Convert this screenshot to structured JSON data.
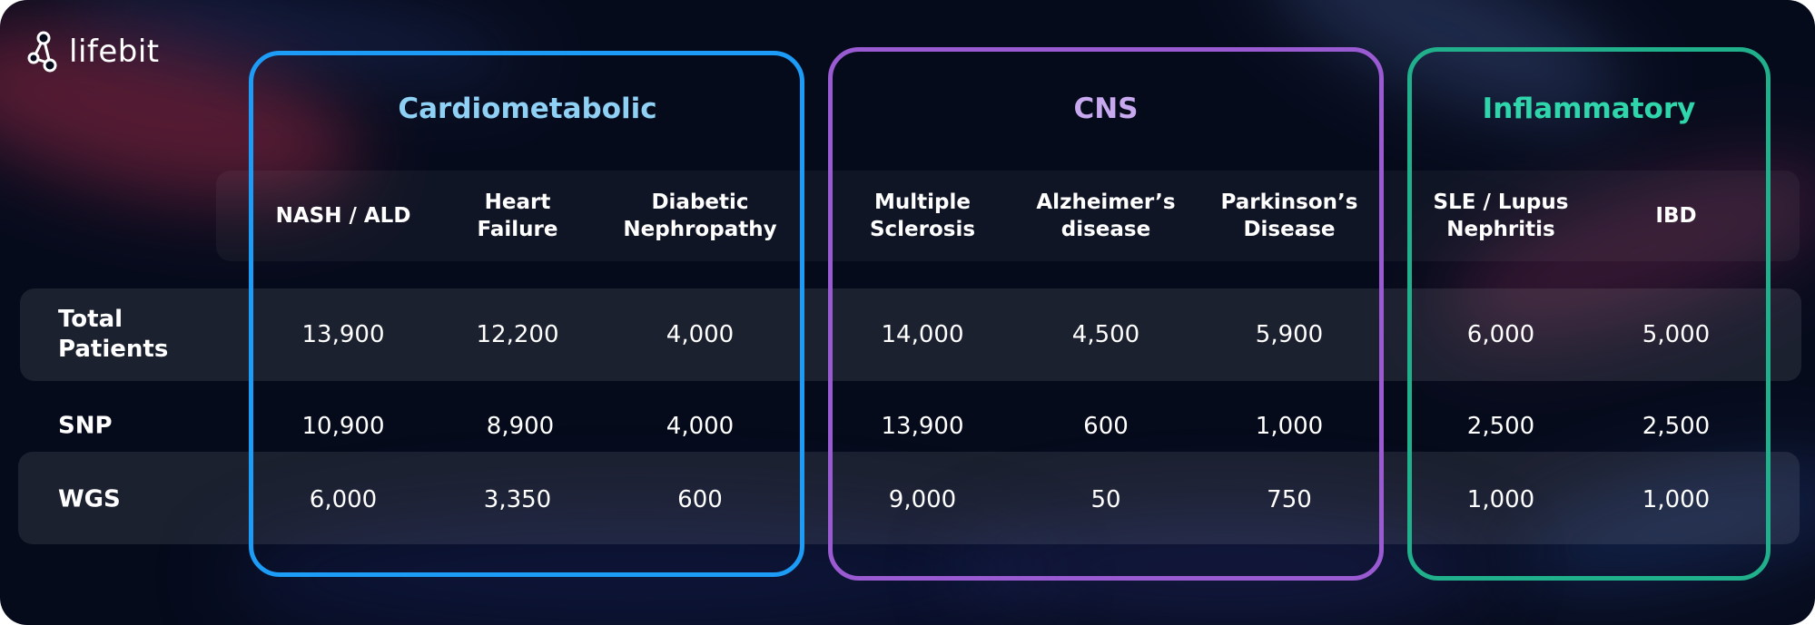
{
  "brand": {
    "name": "lifebit"
  },
  "colors": {
    "cardiometabolic": "#1c9cf6",
    "cns": "#9a5bd2",
    "inflammatory": "#20b08c"
  },
  "groups": [
    {
      "title": "Cardiometabolic"
    },
    {
      "title": "CNS"
    },
    {
      "title": "Inflammatory"
    }
  ],
  "columns": [
    "NASH / ALD",
    "Heart\nFailure",
    "Diabetic\nNephropathy",
    "Multiple\nSclerosis",
    "Alzheimer’s\ndisease",
    "Parkinson’s\nDisease",
    "SLE / Lupus\nNephritis",
    "IBD"
  ],
  "rows": [
    {
      "label": "Total\nPatients",
      "values": [
        "13,900",
        "12,200",
        "4,000",
        "14,000",
        "4,500",
        "5,900",
        "6,000",
        "5,000"
      ]
    },
    {
      "label": "SNP",
      "values": [
        "10,900",
        "8,900",
        "4,000",
        "13,900",
        "600",
        "1,000",
        "2,500",
        "2,500"
      ]
    },
    {
      "label": "WGS",
      "values": [
        "6,000",
        "3,350",
        "600",
        "9,000",
        "50",
        "750",
        "1,000",
        "1,000"
      ]
    }
  ]
}
